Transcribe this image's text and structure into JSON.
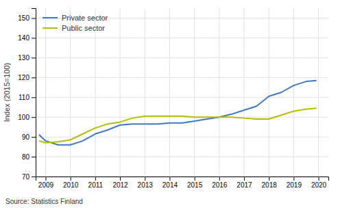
{
  "chart_data": {
    "type": "line",
    "x": [
      2008.75,
      2009.0,
      2009.5,
      2010.0,
      2010.5,
      2011.0,
      2011.5,
      2012.0,
      2012.5,
      2013.0,
      2013.5,
      2014.0,
      2014.5,
      2015.0,
      2015.5,
      2016.0,
      2016.5,
      2017.0,
      2017.5,
      2018.0,
      2018.5,
      2019.0,
      2019.5,
      2019.9
    ],
    "series": [
      {
        "name": "Private sector",
        "color": "#3f78c0",
        "values": [
          91.0,
          88.0,
          86.0,
          86.0,
          88.0,
          91.5,
          93.5,
          96.0,
          96.5,
          96.5,
          96.5,
          97.0,
          97.0,
          98.0,
          99.0,
          100.0,
          101.5,
          103.5,
          105.5,
          110.5,
          112.5,
          116.0,
          118.0,
          118.5
        ]
      },
      {
        "name": "Public sector",
        "color": "#b5bd00",
        "values": [
          88.0,
          87.0,
          87.5,
          88.5,
          91.5,
          94.5,
          96.5,
          97.5,
          99.5,
          100.5,
          100.5,
          100.5,
          100.5,
          100.0,
          100.0,
          100.0,
          100.0,
          99.5,
          99.0,
          99.0,
          101.0,
          103.0,
          104.0,
          104.5
        ]
      }
    ],
    "ylabel": "Index (2015=100)",
    "xlim": [
      2008.6,
      2020.4
    ],
    "ylim": [
      70,
      155
    ],
    "xticks": [
      2009,
      2010,
      2011,
      2012,
      2013,
      2014,
      2015,
      2016,
      2017,
      2018,
      2019,
      2020
    ],
    "yticks": [
      70,
      80,
      90,
      100,
      110,
      120,
      130,
      140,
      150
    ],
    "grid": true,
    "legend": "upper left",
    "annotations": [
      "Source: Statistics Finland"
    ]
  }
}
